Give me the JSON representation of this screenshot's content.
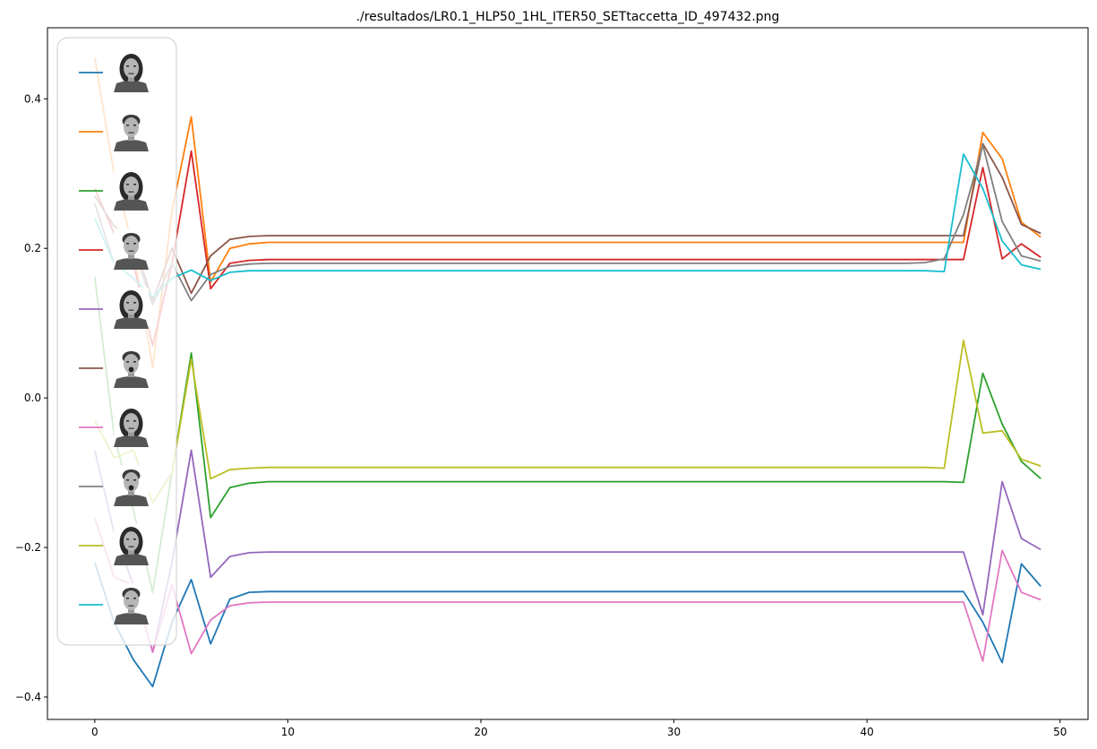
{
  "chart_data": {
    "type": "line",
    "title": "./resultados/LR0.1_HLP50_1HL_ITER50_SETtaccetta_ID_497432.png",
    "xlabel": "",
    "ylabel": "",
    "xlim": [
      -2.45,
      51.45
    ],
    "ylim": [
      -0.43,
      0.495
    ],
    "xticks": [
      0,
      10,
      20,
      30,
      40,
      50
    ],
    "yticks": [
      -0.4,
      -0.2,
      0.0,
      0.2,
      0.4
    ],
    "xtick_labels": [
      "0",
      "10",
      "20",
      "30",
      "40",
      "50"
    ],
    "ytick_labels": [
      "−0.4",
      "−0.2",
      "0.0",
      "0.2",
      "0.4"
    ],
    "grid": false,
    "legend": {
      "placement": "upper-left",
      "entries": "face thumbnails (images, no text)"
    },
    "x": [
      0,
      1,
      2,
      3,
      4,
      5,
      6,
      7,
      8,
      9,
      10,
      11,
      12,
      13,
      14,
      15,
      16,
      17,
      18,
      19,
      20,
      21,
      22,
      23,
      24,
      25,
      26,
      27,
      28,
      29,
      30,
      31,
      32,
      33,
      34,
      35,
      36,
      37,
      38,
      39,
      40,
      41,
      42,
      43,
      44,
      45,
      46,
      47,
      48,
      49
    ],
    "series": [
      {
        "color": "#1f77b4",
        "values": [
          -0.22,
          -0.3,
          -0.35,
          -0.386,
          -0.3,
          -0.243,
          -0.329,
          -0.269,
          -0.26,
          -0.259,
          -0.259,
          -0.259,
          -0.259,
          -0.259,
          -0.259,
          -0.259,
          -0.259,
          -0.259,
          -0.259,
          -0.259,
          -0.259,
          -0.259,
          -0.259,
          -0.259,
          -0.259,
          -0.259,
          -0.259,
          -0.259,
          -0.259,
          -0.259,
          -0.259,
          -0.259,
          -0.259,
          -0.259,
          -0.259,
          -0.259,
          -0.259,
          -0.259,
          -0.259,
          -0.259,
          -0.259,
          -0.259,
          -0.259,
          -0.259,
          -0.259,
          -0.259,
          -0.3,
          -0.354,
          -0.222,
          -0.252
        ]
      },
      {
        "color": "#ff7f0e",
        "values": [
          0.455,
          0.3,
          0.2,
          0.04,
          0.25,
          0.376,
          0.155,
          0.2,
          0.206,
          0.208,
          0.208,
          0.208,
          0.208,
          0.208,
          0.208,
          0.208,
          0.208,
          0.208,
          0.208,
          0.208,
          0.208,
          0.208,
          0.208,
          0.208,
          0.208,
          0.208,
          0.208,
          0.208,
          0.208,
          0.208,
          0.208,
          0.208,
          0.208,
          0.208,
          0.208,
          0.208,
          0.208,
          0.208,
          0.208,
          0.208,
          0.208,
          0.208,
          0.208,
          0.208,
          0.208,
          0.208,
          0.355,
          0.32,
          0.235,
          0.215
        ]
      },
      {
        "color": "#2ca02c",
        "values": [
          0.162,
          -0.05,
          -0.15,
          -0.26,
          -0.1,
          0.06,
          -0.16,
          -0.12,
          -0.114,
          -0.112,
          -0.112,
          -0.112,
          -0.112,
          -0.112,
          -0.112,
          -0.112,
          -0.112,
          -0.112,
          -0.112,
          -0.112,
          -0.112,
          -0.112,
          -0.112,
          -0.112,
          -0.112,
          -0.112,
          -0.112,
          -0.112,
          -0.112,
          -0.112,
          -0.112,
          -0.112,
          -0.112,
          -0.112,
          -0.112,
          -0.112,
          -0.112,
          -0.112,
          -0.112,
          -0.112,
          -0.112,
          -0.112,
          -0.112,
          -0.112,
          -0.112,
          -0.113,
          0.033,
          -0.035,
          -0.085,
          -0.108
        ]
      },
      {
        "color": "#d62728",
        "values": [
          0.28,
          0.22,
          0.18,
          0.07,
          0.18,
          0.33,
          0.146,
          0.18,
          0.184,
          0.185,
          0.185,
          0.185,
          0.185,
          0.185,
          0.185,
          0.185,
          0.185,
          0.185,
          0.185,
          0.185,
          0.185,
          0.185,
          0.185,
          0.185,
          0.185,
          0.185,
          0.185,
          0.185,
          0.185,
          0.185,
          0.185,
          0.185,
          0.185,
          0.185,
          0.185,
          0.185,
          0.185,
          0.185,
          0.185,
          0.185,
          0.185,
          0.185,
          0.185,
          0.185,
          0.185,
          0.185,
          0.308,
          0.186,
          0.206,
          0.188
        ]
      },
      {
        "color": "#9467bd",
        "values": [
          -0.07,
          -0.18,
          -0.25,
          -0.34,
          -0.22,
          -0.07,
          -0.24,
          -0.212,
          -0.207,
          -0.206,
          -0.206,
          -0.206,
          -0.206,
          -0.206,
          -0.206,
          -0.206,
          -0.206,
          -0.206,
          -0.206,
          -0.206,
          -0.206,
          -0.206,
          -0.206,
          -0.206,
          -0.206,
          -0.206,
          -0.206,
          -0.206,
          -0.206,
          -0.206,
          -0.206,
          -0.206,
          -0.206,
          -0.206,
          -0.206,
          -0.206,
          -0.206,
          -0.206,
          -0.206,
          -0.206,
          -0.206,
          -0.206,
          -0.206,
          -0.206,
          -0.206,
          -0.206,
          -0.29,
          -0.112,
          -0.188,
          -0.203
        ]
      },
      {
        "color": "#8c564b",
        "values": [
          0.27,
          0.23,
          0.21,
          0.13,
          0.2,
          0.14,
          0.19,
          0.212,
          0.216,
          0.217,
          0.217,
          0.217,
          0.217,
          0.217,
          0.217,
          0.217,
          0.217,
          0.217,
          0.217,
          0.217,
          0.217,
          0.217,
          0.217,
          0.217,
          0.217,
          0.217,
          0.217,
          0.217,
          0.217,
          0.217,
          0.217,
          0.217,
          0.217,
          0.217,
          0.217,
          0.217,
          0.217,
          0.217,
          0.217,
          0.217,
          0.217,
          0.217,
          0.217,
          0.217,
          0.217,
          0.217,
          0.34,
          0.295,
          0.232,
          0.22
        ]
      },
      {
        "color": "#e377c2",
        "values": [
          -0.16,
          -0.24,
          -0.25,
          -0.34,
          -0.25,
          -0.342,
          -0.297,
          -0.278,
          -0.274,
          -0.273,
          -0.273,
          -0.273,
          -0.273,
          -0.273,
          -0.273,
          -0.273,
          -0.273,
          -0.273,
          -0.273,
          -0.273,
          -0.273,
          -0.273,
          -0.273,
          -0.273,
          -0.273,
          -0.273,
          -0.273,
          -0.273,
          -0.273,
          -0.273,
          -0.273,
          -0.273,
          -0.273,
          -0.273,
          -0.273,
          -0.273,
          -0.273,
          -0.273,
          -0.273,
          -0.273,
          -0.273,
          -0.273,
          -0.273,
          -0.273,
          -0.273,
          -0.273,
          -0.352,
          -0.204,
          -0.26,
          -0.27
        ]
      },
      {
        "color": "#7f7f7f",
        "values": [
          0.26,
          0.18,
          0.2,
          0.125,
          0.18,
          0.13,
          0.165,
          0.176,
          0.179,
          0.18,
          0.18,
          0.18,
          0.18,
          0.18,
          0.18,
          0.18,
          0.18,
          0.18,
          0.18,
          0.18,
          0.18,
          0.18,
          0.18,
          0.18,
          0.18,
          0.18,
          0.18,
          0.18,
          0.18,
          0.18,
          0.18,
          0.18,
          0.18,
          0.18,
          0.18,
          0.18,
          0.18,
          0.18,
          0.18,
          0.18,
          0.18,
          0.18,
          0.18,
          0.181,
          0.186,
          0.245,
          0.338,
          0.236,
          0.19,
          0.183
        ]
      },
      {
        "color": "#bcbd22",
        "values": [
          -0.03,
          -0.08,
          -0.07,
          -0.14,
          -0.1,
          0.052,
          -0.108,
          -0.096,
          -0.094,
          -0.093,
          -0.093,
          -0.093,
          -0.093,
          -0.093,
          -0.093,
          -0.093,
          -0.093,
          -0.093,
          -0.093,
          -0.093,
          -0.093,
          -0.093,
          -0.093,
          -0.093,
          -0.093,
          -0.093,
          -0.093,
          -0.093,
          -0.093,
          -0.093,
          -0.093,
          -0.093,
          -0.093,
          -0.093,
          -0.093,
          -0.093,
          -0.093,
          -0.093,
          -0.093,
          -0.093,
          -0.093,
          -0.093,
          -0.093,
          -0.093,
          -0.094,
          0.077,
          -0.047,
          -0.044,
          -0.082,
          -0.091
        ]
      },
      {
        "color": "#17becf",
        "values": [
          0.24,
          0.18,
          0.16,
          0.135,
          0.16,
          0.171,
          0.157,
          0.168,
          0.17,
          0.17,
          0.17,
          0.17,
          0.17,
          0.17,
          0.17,
          0.17,
          0.17,
          0.17,
          0.17,
          0.17,
          0.17,
          0.17,
          0.17,
          0.17,
          0.17,
          0.17,
          0.17,
          0.17,
          0.17,
          0.17,
          0.17,
          0.17,
          0.17,
          0.17,
          0.17,
          0.17,
          0.17,
          0.17,
          0.17,
          0.17,
          0.17,
          0.17,
          0.17,
          0.17,
          0.169,
          0.326,
          0.28,
          0.21,
          0.178,
          0.172
        ]
      }
    ]
  }
}
